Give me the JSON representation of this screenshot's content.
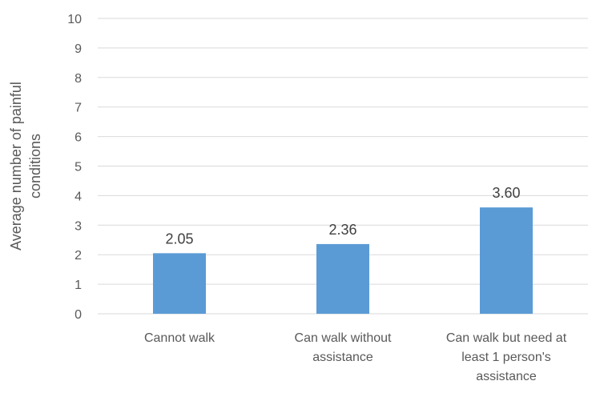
{
  "chart_data": {
    "type": "bar",
    "title": "",
    "xlabel": "",
    "ylabel": "Average number of painful conditions",
    "ylabel_lines": [
      "Average number of painful",
      "conditions"
    ],
    "categories": [
      "Cannot walk",
      "Can walk without assistance",
      "Can walk but need at least 1 person's assistance"
    ],
    "category_lines": [
      [
        "Cannot walk"
      ],
      [
        "Can walk without",
        "assistance"
      ],
      [
        "Can walk but need at",
        "least 1 person's",
        "assistance"
      ]
    ],
    "values": [
      2.05,
      2.36,
      3.6
    ],
    "data_labels": [
      "2.05",
      "2.36",
      "3.60"
    ],
    "ylim": [
      0,
      10
    ],
    "yticks": [
      0,
      1,
      2,
      3,
      4,
      5,
      6,
      7,
      8,
      9,
      10
    ],
    "grid": true,
    "legend": "none",
    "colors": {
      "bar": "#5B9BD5",
      "grid": "#D9D9D9",
      "axis": "#D9D9D9",
      "tick_text": "#595959",
      "label_text": "#404040"
    }
  }
}
